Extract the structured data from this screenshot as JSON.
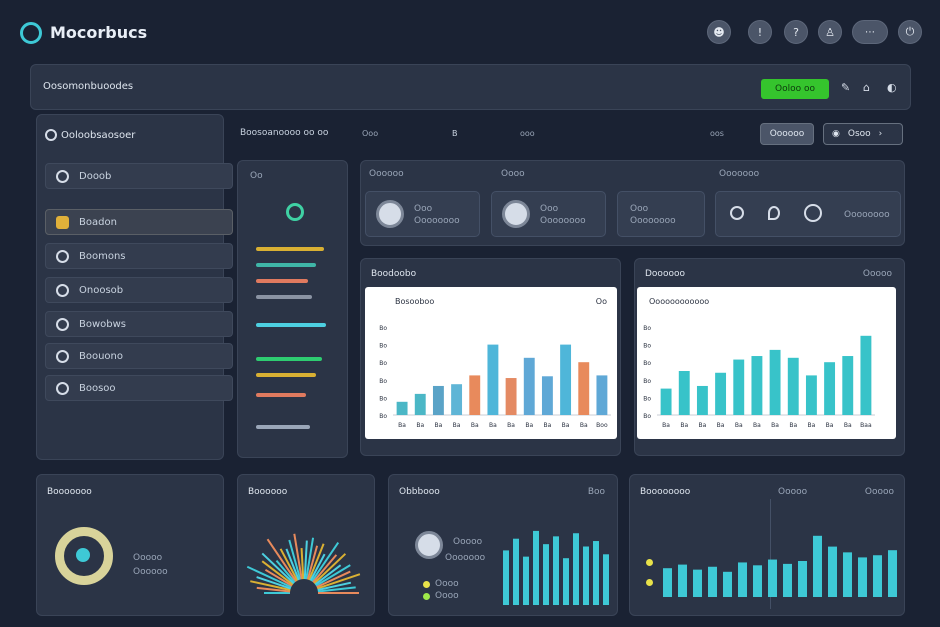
{
  "app": {
    "title": "Mocorbucs"
  },
  "header_icons": [
    {
      "name": "user-icon",
      "glyph": "☻"
    },
    {
      "name": "alert-icon",
      "glyph": "!"
    },
    {
      "name": "chat-icon",
      "glyph": "?"
    },
    {
      "name": "profile-icon",
      "glyph": "♙"
    },
    {
      "name": "options-icon",
      "glyph": "⋯"
    },
    {
      "name": "power-icon",
      "glyph": "⏻"
    }
  ],
  "subheader": {
    "title": "Oosomonbuoodes",
    "action_label": "Ooloo oo",
    "action_color": "#35c42d",
    "icon_a": "✎",
    "icon_b": "⌂",
    "icon_c": "◐"
  },
  "sidebar": {
    "heading": "Ooloobsaosoer",
    "items": [
      {
        "label": "Dooob"
      },
      {
        "label": "Boadon"
      },
      {
        "label": "Boomons"
      },
      {
        "label": "Onoosob"
      },
      {
        "label": "Bowobws"
      },
      {
        "label": "Boouono"
      },
      {
        "label": "Boosoo"
      }
    ]
  },
  "toolbar": {
    "breadcrumb": "Boosoanoooo oo oo",
    "filter_a": "Ooo",
    "filter_b": "B",
    "filter_c": "ooo",
    "page_label": "oos",
    "button_label": "Oooooo",
    "select_label": "Osoo"
  },
  "left_panel": {
    "title": "Oo",
    "stripe_colors": [
      "#d9b033",
      "#3fb6a8",
      "#e07a5f",
      "#8a93a3",
      "#4dd0e1",
      "#2ecc71",
      "#d9b033",
      "#e07a5f",
      "#9aa6b8"
    ]
  },
  "top_cards": {
    "group_a_title": "Oooooo",
    "group_b_title": "Oooo",
    "group_c_title": "Ooooooo",
    "card_1": {
      "line1": "Ooo",
      "line2": "Oooooooo"
    },
    "card_2": {
      "line1": "Ooo",
      "line2": "Oooooooo"
    },
    "card_3": {
      "line1": "Ooo",
      "line2": "Oooooooo"
    },
    "card_4": {
      "line1": "Oooooooo"
    }
  },
  "chart_panels": {
    "left": {
      "title": "Boodoobo",
      "subtitle": "Bosooboo",
      "tag": "Oo"
    },
    "right": {
      "title": "Doooooo",
      "subtitle": "Oooooooooooo",
      "tag": "Ooooo"
    }
  },
  "bottom": {
    "panel_1": {
      "title": "Booooooo",
      "legend1": "Ooooo",
      "legend2": "Oooooo"
    },
    "panel_2": {
      "title": "Boooooo"
    },
    "panel_3": {
      "title": "Obbbooo",
      "tag": "Boo",
      "line1": "Ooooo",
      "line2": "Ooooooo",
      "row1": "Oooo",
      "row2": "Oooo"
    },
    "panel_4": {
      "title": "Boooooooo",
      "tag_a": "Ooooo",
      "tag_b": "Ooooo"
    }
  },
  "chart_data": [
    {
      "type": "bar",
      "title": "Bosooboo",
      "categories": [
        "Ba",
        "Ba",
        "Ba",
        "Ba",
        "Ba",
        "Ba",
        "Ba",
        "Ba",
        "Ba",
        "Ba",
        "Ba",
        "Boo"
      ],
      "series": [
        {
          "values": [
            15,
            24,
            33,
            35,
            45,
            80,
            42,
            65,
            44,
            80,
            60,
            45
          ]
        }
      ],
      "colors": [
        "#4bb7c6",
        "#4bb7c6",
        "#5aa3c7",
        "#5fb5d6",
        "#e88a5c",
        "#4fb6d9",
        "#e48a63",
        "#5fa8d6",
        "#5fa8d6",
        "#4fb6d9",
        "#e88a5c",
        "#5fa8d6"
      ],
      "yticks": [
        "Bo",
        "Bo",
        "Bo",
        "Bo",
        "Bo",
        "Bo"
      ],
      "ylim": [
        0,
        100
      ]
    },
    {
      "type": "bar",
      "title": "Oooooooooooo",
      "categories": [
        "Ba",
        "Ba",
        "Ba",
        "Ba",
        "Ba",
        "Ba",
        "Ba",
        "Ba",
        "Ba",
        "Ba",
        "Ba",
        "Baa"
      ],
      "series": [
        {
          "values": [
            30,
            50,
            33,
            48,
            63,
            67,
            74,
            65,
            45,
            60,
            67,
            90
          ]
        }
      ],
      "colors": [
        "#38c3c9",
        "#38c3c9",
        "#38c3c9",
        "#38c3c9",
        "#38c3c9",
        "#38c3c9",
        "#38c3c9",
        "#38c3c9",
        "#38c3c9",
        "#38c3c9",
        "#38c3c9",
        "#38c3c9"
      ],
      "yticks": [
        "Bo",
        "Bo",
        "Bo",
        "Bo",
        "Bo",
        "Bo"
      ],
      "ylim": [
        0,
        100
      ]
    }
  ],
  "radial": {
    "values": [
      40,
      55,
      70,
      60,
      85,
      50,
      65,
      75,
      45,
      90,
      60,
      55,
      70,
      80,
      50,
      65,
      72,
      58,
      66,
      48,
      82,
      60,
      74,
      52,
      68,
      62,
      78,
      56,
      64,
      70
    ]
  },
  "mini_bars_3": {
    "values": [
      70,
      85,
      62,
      95,
      78,
      88,
      60,
      92,
      75,
      82,
      65
    ]
  },
  "mini_bars_4": {
    "values": [
      40,
      45,
      38,
      42,
      35,
      48,
      44,
      52,
      46,
      50,
      85,
      70,
      62,
      55,
      58,
      65
    ]
  }
}
